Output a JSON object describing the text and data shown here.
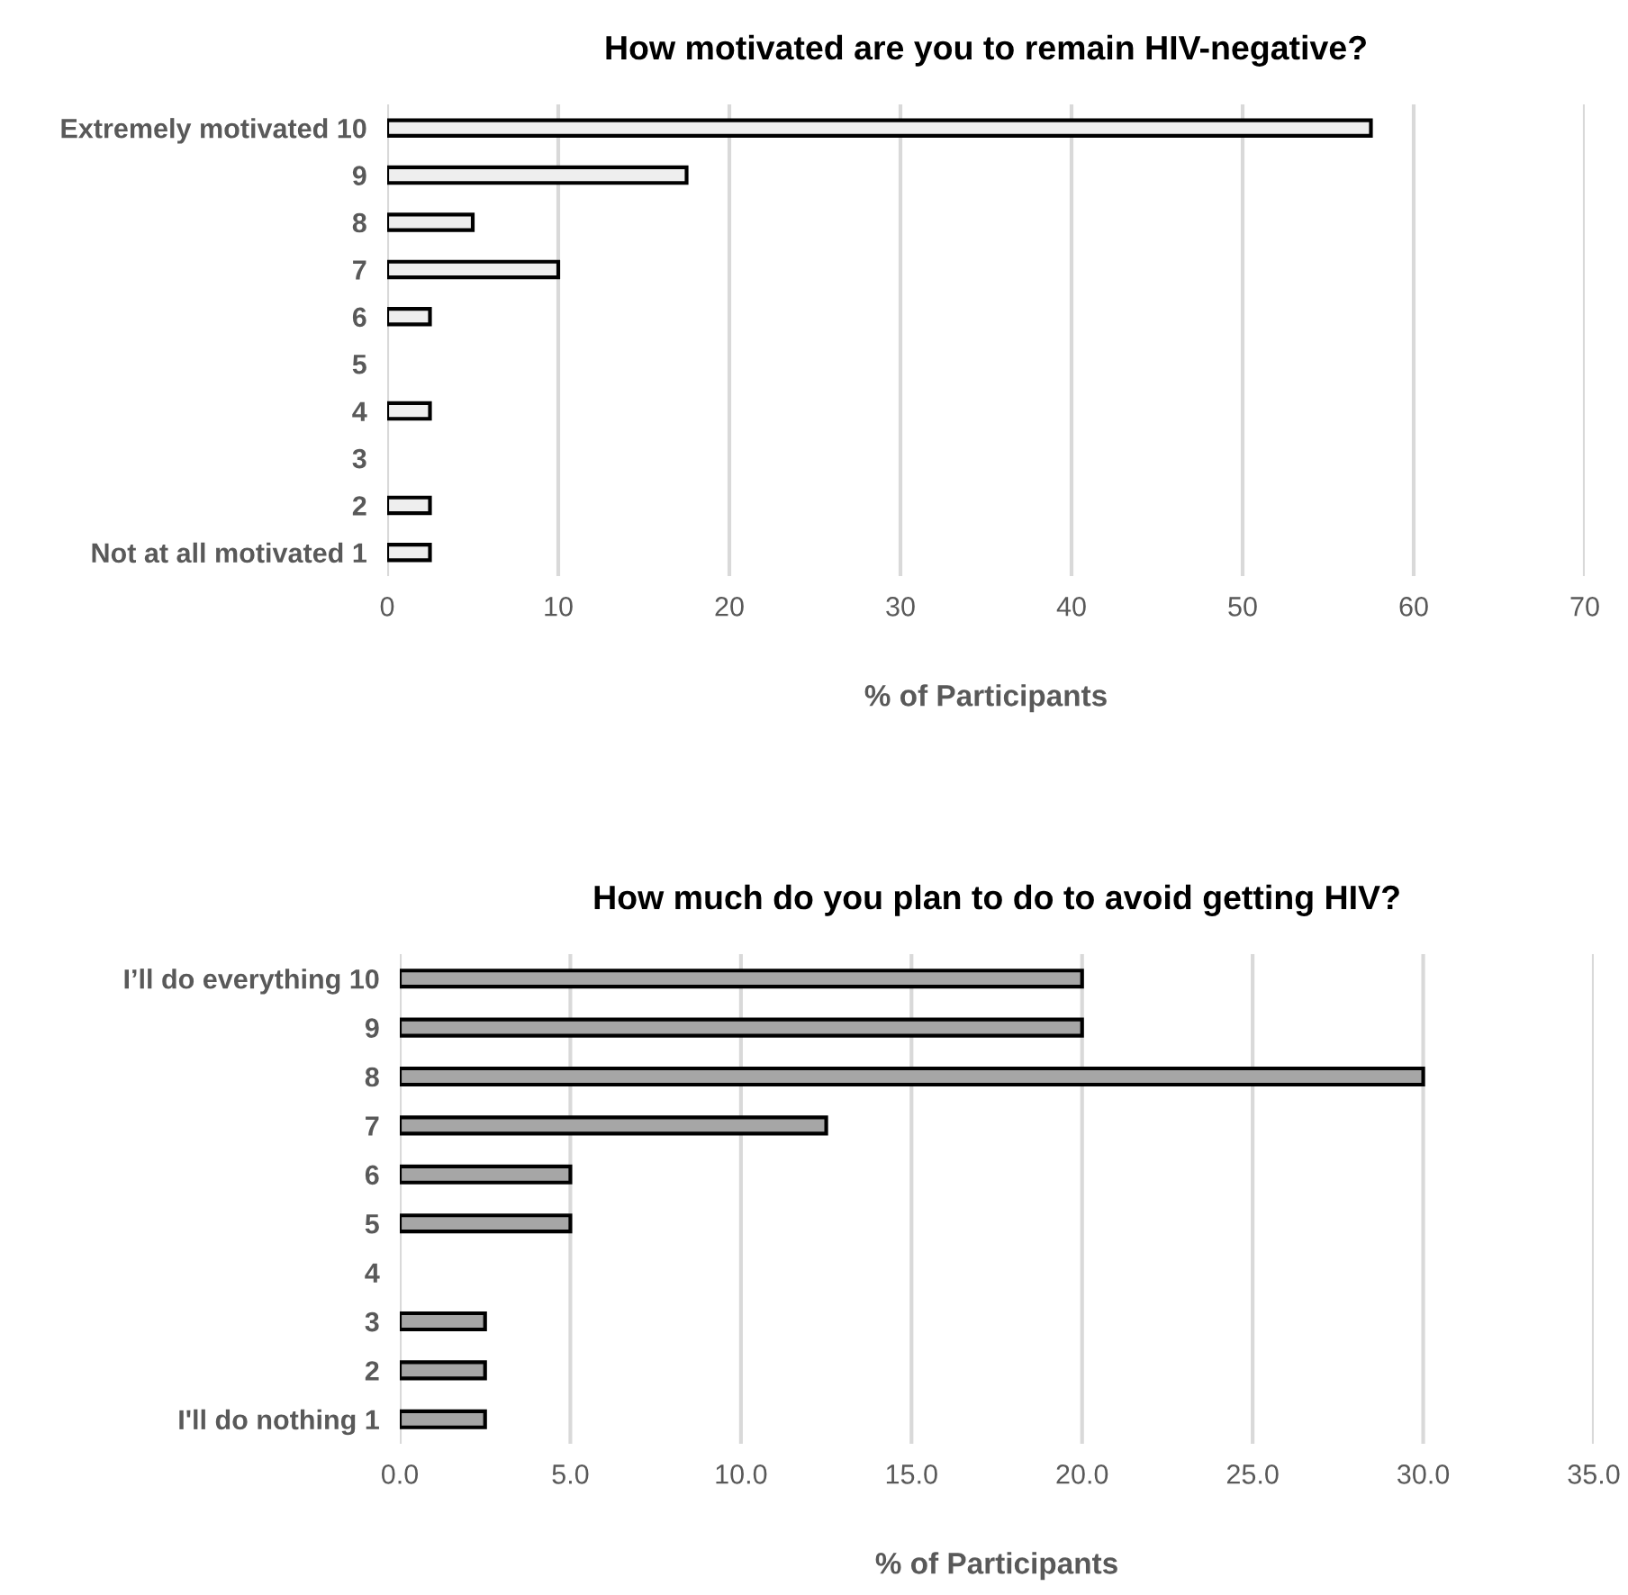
{
  "chart_data": [
    {
      "type": "bar",
      "orientation": "horizontal",
      "title": "How motivated are you to remain HIV-negative?",
      "xlabel": "% of Participants",
      "categories": [
        "Extremely motivated 10",
        "9",
        "8",
        "7",
        "6",
        "5",
        "4",
        "3",
        "2",
        "Not at all motivated 1"
      ],
      "values": [
        57.5,
        17.5,
        5,
        10,
        2.5,
        null,
        2.5,
        null,
        2.5,
        2.5
      ],
      "color": "#eeeeee",
      "xlim": [
        0,
        70
      ],
      "xticks": [
        0,
        10,
        20,
        30,
        40,
        50,
        60,
        70
      ],
      "grid": "x"
    },
    {
      "type": "bar",
      "orientation": "horizontal",
      "title": "How much do you plan to do to avoid getting HIV?",
      "xlabel": "% of Participants",
      "categories": [
        "I’ll do everything 10",
        "9",
        "8",
        "7",
        "6",
        "5",
        "4",
        "3",
        "2",
        "I'll do nothing 1"
      ],
      "values": [
        20,
        20,
        30,
        12.5,
        5,
        5,
        null,
        2.5,
        2.5,
        2.5
      ],
      "color": "#a6a6a6",
      "xlim": [
        0,
        35
      ],
      "xticks": [
        {
          "value": 0,
          "label": "0.0"
        },
        {
          "value": 5,
          "label": "5.0"
        },
        {
          "value": 10,
          "label": "10.0"
        },
        {
          "value": 15,
          "label": "15.0"
        },
        {
          "value": 20,
          "label": "20.0"
        },
        {
          "value": 25,
          "label": "25.0"
        },
        {
          "value": 30,
          "label": "30.0"
        },
        {
          "value": 35,
          "label": "35.0"
        }
      ],
      "grid": "x"
    }
  ]
}
